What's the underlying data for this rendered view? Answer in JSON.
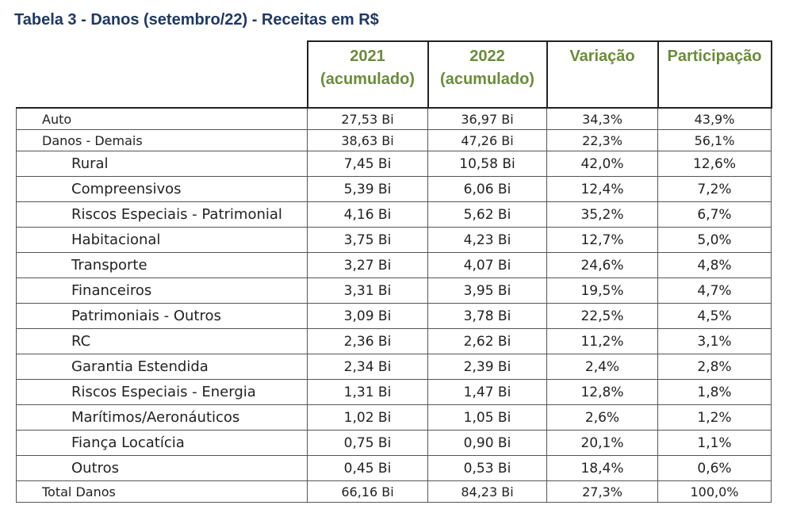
{
  "title": "Tabela 3 - Danos (setembro/22) - Receitas em R$",
  "headers": {
    "col2021_line1": "2021",
    "col2021_line2": "(acumulado)",
    "col2022_line1": "2022",
    "col2022_line2": "(acumulado)",
    "variacao": "Variação",
    "participacao": "Participação"
  },
  "rows": [
    {
      "label": "Auto",
      "v2021": "27,53 Bi",
      "v2022": "36,97 Bi",
      "var": "34,3%",
      "part": "43,9%"
    },
    {
      "label": "Danos - Demais",
      "v2021": "38,63 Bi",
      "v2022": "47,26 Bi",
      "var": "22,3%",
      "part": "56,1%"
    },
    {
      "label": "Rural",
      "v2021": "7,45 Bi",
      "v2022": "10,58 Bi",
      "var": "42,0%",
      "part": "12,6%"
    },
    {
      "label": "Compreensivos",
      "v2021": "5,39 Bi",
      "v2022": "6,06 Bi",
      "var": "12,4%",
      "part": "7,2%"
    },
    {
      "label": "Riscos Especiais - Patrimonial",
      "v2021": "4,16 Bi",
      "v2022": "5,62 Bi",
      "var": "35,2%",
      "part": "6,7%"
    },
    {
      "label": "Habitacional",
      "v2021": "3,75 Bi",
      "v2022": "4,23 Bi",
      "var": "12,7%",
      "part": "5,0%"
    },
    {
      "label": "Transporte",
      "v2021": "3,27 Bi",
      "v2022": "4,07 Bi",
      "var": "24,6%",
      "part": "4,8%"
    },
    {
      "label": "Financeiros",
      "v2021": "3,31 Bi",
      "v2022": "3,95 Bi",
      "var": "19,5%",
      "part": "4,7%"
    },
    {
      "label": "Patrimoniais - Outros",
      "v2021": "3,09 Bi",
      "v2022": "3,78 Bi",
      "var": "22,5%",
      "part": "4,5%"
    },
    {
      "label": "RC",
      "v2021": "2,36 Bi",
      "v2022": "2,62 Bi",
      "var": "11,2%",
      "part": "3,1%"
    },
    {
      "label": "Garantia Estendida",
      "v2021": "2,34 Bi",
      "v2022": "2,39 Bi",
      "var": "2,4%",
      "part": "2,8%"
    },
    {
      "label": "Riscos Especiais - Energia",
      "v2021": "1,31 Bi",
      "v2022": "1,47 Bi",
      "var": "12,8%",
      "part": "1,8%"
    },
    {
      "label": "Marítimos/Aeronáuticos",
      "v2021": "1,02 Bi",
      "v2022": "1,05 Bi",
      "var": "2,6%",
      "part": "1,2%"
    },
    {
      "label": "Fiança Locatícia",
      "v2021": "0,75 Bi",
      "v2022": "0,90 Bi",
      "var": "20,1%",
      "part": "1,1%"
    },
    {
      "label": "Outros",
      "v2021": "0,45 Bi",
      "v2022": "0,53 Bi",
      "var": "18,4%",
      "part": "0,6%"
    },
    {
      "label": "Total Danos",
      "v2021": "66,16 Bi",
      "v2022": "84,23 Bi",
      "var": "27,3%",
      "part": "100,0%"
    }
  ]
}
